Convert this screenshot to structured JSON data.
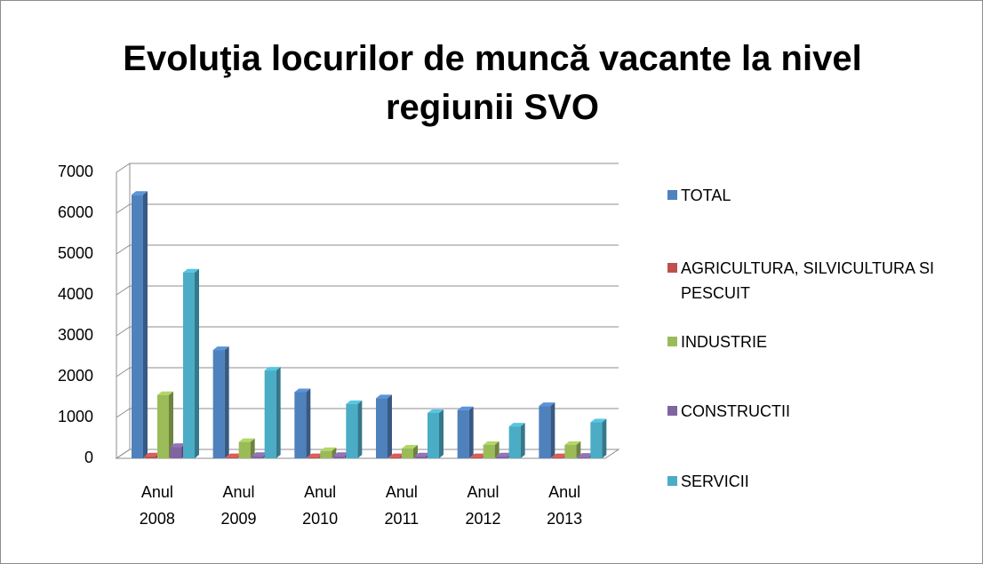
{
  "chart_data": {
    "type": "bar3d",
    "title": "Evoluţia locurilor de muncă vacante la nivel regiunii SVO",
    "categories": [
      "Anul 2008",
      "Anul 2009",
      "Anul 2010",
      "Anul 2011",
      "Anul 2012",
      "Anul 2013"
    ],
    "series": [
      {
        "name": "TOTAL",
        "color": "#4f81bd",
        "values": [
          6450,
          2650,
          1620,
          1470,
          1180,
          1280
        ]
      },
      {
        "name": "AGRICULTURA, SILVICULTURA SI PESCUIT",
        "color": "#c0504d",
        "values": [
          50,
          30,
          30,
          30,
          30,
          30
        ]
      },
      {
        "name": "INDUSTRIE",
        "color": "#9bbb59",
        "values": [
          1550,
          400,
          180,
          240,
          330,
          330
        ]
      },
      {
        "name": "CONSTRUCTII",
        "color": "#8064a2",
        "values": [
          280,
          60,
          60,
          50,
          50,
          40
        ]
      },
      {
        "name": "SERVICII",
        "color": "#4bacc6",
        "values": [
          4550,
          2150,
          1330,
          1110,
          780,
          880
        ]
      }
    ],
    "ylim": [
      0,
      7000
    ],
    "yticks": [
      0,
      1000,
      2000,
      3000,
      4000,
      5000,
      6000,
      7000
    ],
    "grid": true,
    "legend": "right"
  }
}
